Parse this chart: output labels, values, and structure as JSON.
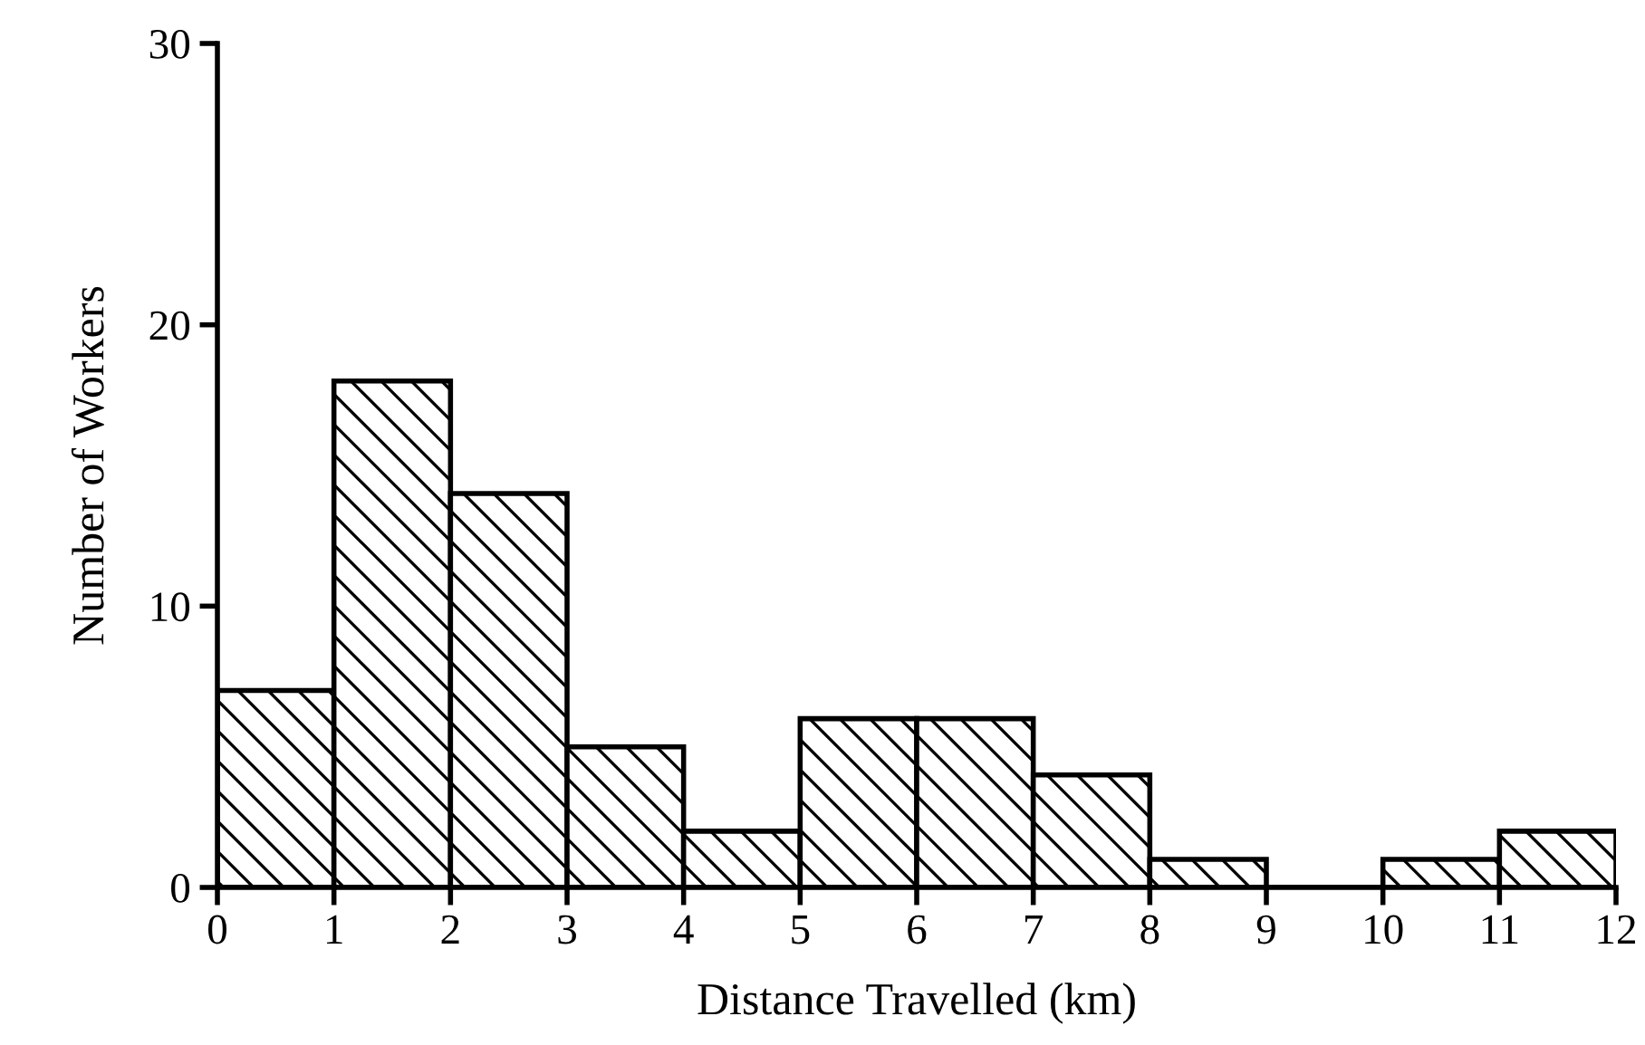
{
  "chart_data": {
    "type": "histogram",
    "xlabel": "Distance Travelled (km)",
    "ylabel": "Number of Workers",
    "bins": [
      0,
      1,
      2,
      3,
      4,
      5,
      6,
      7,
      8,
      9,
      10,
      11,
      12
    ],
    "values": [
      7,
      18,
      14,
      5,
      2,
      6,
      6,
      4,
      1,
      0,
      1,
      2
    ],
    "color": "#000000",
    "xlim": [
      0,
      12
    ],
    "xticks": [
      0,
      1,
      2,
      3,
      4,
      5,
      6,
      7,
      8,
      9,
      10,
      11,
      12
    ],
    "ylim": [
      0,
      30
    ],
    "yticks": [
      0,
      10,
      20,
      30
    ],
    "grid": false
  }
}
